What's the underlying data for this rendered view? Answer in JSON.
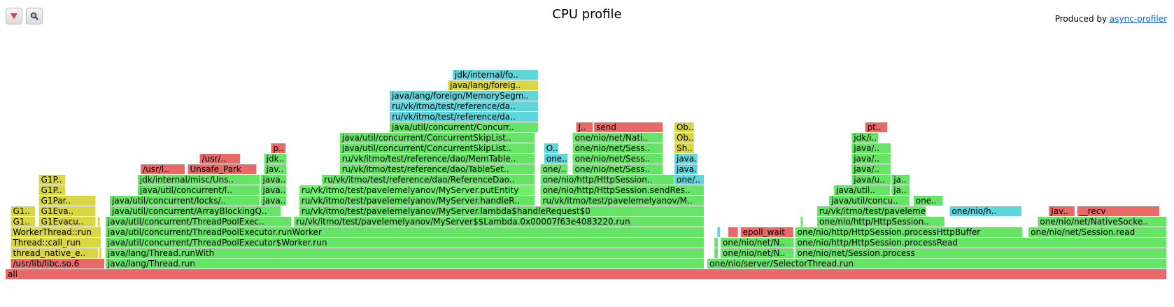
{
  "header": {
    "title": "CPU profile",
    "produced_by": "Produced by ",
    "produced_link": "async-profiler"
  },
  "toolbar": {
    "reverse_icon": "triangle-down-icon",
    "search_icon": "magnifier-icon"
  },
  "palette": {
    "red": "#e96868",
    "green": "#66e466",
    "cyan": "#5fd6dc",
    "yellow": "#d9d644",
    "bright_green": "#6cf06c"
  },
  "chart_data": {
    "type": "flamegraph",
    "title": "CPU profile",
    "frames": [
      {
        "label": "all",
        "x": 0,
        "w": 1.0,
        "level": 0,
        "color": "red"
      },
      {
        "label": "/usr/lib/libc.so.6",
        "x": 0.0045,
        "w": 0.081,
        "level": 1,
        "color": "red"
      },
      {
        "label": "java/lang/Thread.run",
        "x": 0.0861,
        "w": 0.5157,
        "level": 1,
        "color": "green"
      },
      {
        "label": "one/nio/server/SelectorThread.run",
        "x": 0.6043,
        "w": 0.3957,
        "level": 1,
        "color": "green"
      },
      {
        "label": "thread_native_e..",
        "x": 0.0045,
        "w": 0.0758,
        "level": 2,
        "color": "yellow"
      },
      {
        "label": "",
        "x": 0.0805,
        "w": 0.0025,
        "level": 2,
        "color": "yellow"
      },
      {
        "label": "java/lang/Thread.runWith",
        "x": 0.0861,
        "w": 0.5157,
        "level": 2,
        "color": "green"
      },
      {
        "label": "",
        "x": 0.6103,
        "w": 0.0035,
        "level": 2,
        "color": "green"
      },
      {
        "label": "one/nio/net/N..",
        "x": 0.6157,
        "w": 0.0636,
        "level": 2,
        "color": "green"
      },
      {
        "label": "one/nio/net/Session.process",
        "x": 0.6799,
        "w": 0.3201,
        "level": 2,
        "color": "green"
      },
      {
        "label": "Thread::call_run",
        "x": 0.0045,
        "w": 0.0781,
        "level": 3,
        "color": "yellow"
      },
      {
        "label": "java/util/concurrent/ThreadPoolExecutor$Worker.run",
        "x": 0.0861,
        "w": 0.5157,
        "level": 3,
        "color": "green"
      },
      {
        "label": "",
        "x": 0.6103,
        "w": 0.0035,
        "level": 3,
        "color": "green"
      },
      {
        "label": "one/nio/net/N..",
        "x": 0.6157,
        "w": 0.0636,
        "level": 3,
        "color": "green"
      },
      {
        "label": "one/nio/http/HttpSession.processRead",
        "x": 0.6799,
        "w": 0.3201,
        "level": 3,
        "color": "green"
      },
      {
        "label": "WorkerThread::run",
        "x": 0.0045,
        "w": 0.0781,
        "level": 4,
        "color": "yellow"
      },
      {
        "label": "java/util/concurrent/ThreadPoolExecutor.runWorker",
        "x": 0.0861,
        "w": 0.5157,
        "level": 4,
        "color": "green"
      },
      {
        "label": "",
        "x": 0.6128,
        "w": 0.0029,
        "level": 4,
        "color": "cyan"
      },
      {
        "label": "",
        "x": 0.6222,
        "w": 0.0089,
        "level": 4,
        "color": "red"
      },
      {
        "label": "epoll_wait",
        "x": 0.6329,
        "w": 0.0459,
        "level": 4,
        "color": "red"
      },
      {
        "label": "one/nio/http/HttpSession.processHttpBuffer",
        "x": 0.6799,
        "w": 0.1961,
        "level": 4,
        "color": "green"
      },
      {
        "label": "one/nio/net/Session.read",
        "x": 0.8808,
        "w": 0.1192,
        "level": 4,
        "color": "green"
      },
      {
        "label": "G1..",
        "x": 0.0045,
        "w": 0.0215,
        "level": 5,
        "color": "yellow"
      },
      {
        "label": "G1Evacu..",
        "x": 0.0287,
        "w": 0.0493,
        "level": 5,
        "color": "yellow"
      },
      {
        "label": "",
        "x": 0.0793,
        "w": 0.0024,
        "level": 5,
        "color": "yellow"
      },
      {
        "label": "java/util/concurrent/ThreadPoolExec..",
        "x": 0.0861,
        "w": 0.1606,
        "level": 5,
        "color": "green"
      },
      {
        "label": "ru/vk/itmo/test/pavelemelyanov/MyServer$$Lambda.0x00007f63e4083220.run",
        "x": 0.2483,
        "w": 0.3535,
        "level": 5,
        "color": "green"
      },
      {
        "label": "",
        "x": 0.6846,
        "w": 0.0024,
        "level": 5,
        "color": "green"
      },
      {
        "label": "ru/vk/itmo/test/pavelemelyanov/MyServer.lambda$handleRequest$0",
        "x": 0.2529,
        "w": 0.3489,
        "level": 6,
        "color": "green"
      },
      {
        "label": "ru/vk/itmo/test/pavelemelyanov/MyServer.handleR..",
        "x": 0.2529,
        "w": 0.2033,
        "level": 7,
        "color": "green"
      },
      {
        "label": "ru/vk/itmo/test/pavelemelyanov/MyServer.putEntity",
        "x": 0.2529,
        "w": 0.2033,
        "level": 8,
        "color": "bright_green"
      },
      {
        "label": "ru/vk/itmo/test/reference/dao/ReferenceDao..",
        "x": 0.2724,
        "w": 0.1838,
        "level": 9,
        "color": "green"
      },
      {
        "label": "ru/vk/itmo/test/reference/dao/TableSet..",
        "x": 0.2878,
        "w": 0.1684,
        "level": 10,
        "color": "green"
      },
      {
        "label": "ru/vk/itmo/test/reference/dao/MemTable..",
        "x": 0.2878,
        "w": 0.1684,
        "level": 11,
        "color": "green"
      },
      {
        "label": "java/util/concurrent/ConcurrentSkipList..",
        "x": 0.2878,
        "w": 0.1684,
        "level": 12,
        "color": "green"
      },
      {
        "label": "java/util/concurrent/ConcurrentSkipList..",
        "x": 0.2878,
        "w": 0.1684,
        "level": 13,
        "color": "green"
      },
      {
        "label": "java/util/concurrent/Concurr..",
        "x": 0.3307,
        "w": 0.1283,
        "level": 14,
        "color": "green"
      },
      {
        "label": "ru/vk/itmo/test/reference/da..",
        "x": 0.3307,
        "w": 0.1283,
        "level": 15,
        "color": "cyan"
      },
      {
        "label": "ru/vk/itmo/test/reference/da..",
        "x": 0.3307,
        "w": 0.1283,
        "level": 16,
        "color": "cyan"
      },
      {
        "label": "java/lang/foreign/MemorySegm..",
        "x": 0.3307,
        "w": 0.1283,
        "level": 17,
        "color": "cyan"
      },
      {
        "label": "java/lang/foreig..",
        "x": 0.3808,
        "w": 0.0782,
        "level": 18,
        "color": "yellow"
      },
      {
        "label": "jdk/internal/fo..",
        "x": 0.3849,
        "w": 0.0741,
        "level": 19,
        "color": "cyan"
      },
      {
        "label": "one/nio/http/HttpSession.sendRes..",
        "x": 0.4606,
        "w": 0.1412,
        "level": 8,
        "color": "green"
      },
      {
        "label": "ru/vk/itmo/test/pavelemelyanov/M..",
        "x": 0.4606,
        "w": 0.1412,
        "level": 7,
        "color": "green"
      },
      {
        "label": "one/nio/net/Sess..",
        "x": 0.4883,
        "w": 0.0781,
        "level": 10,
        "color": "green"
      },
      {
        "label": "one/nio/net/Sess..",
        "x": 0.4883,
        "w": 0.0781,
        "level": 11,
        "color": "green"
      },
      {
        "label": "one/nio/net/Sess..",
        "x": 0.4883,
        "w": 0.0781,
        "level": 12,
        "color": "green"
      },
      {
        "label": "one/nio/net/Nati..",
        "x": 0.4883,
        "w": 0.0781,
        "level": 13,
        "color": "green"
      },
      {
        "label": "J..",
        "x": 0.4913,
        "w": 0.0149,
        "level": 14,
        "color": "red"
      },
      {
        "label": "send",
        "x": 0.5067,
        "w": 0.0596,
        "level": 14,
        "color": "red"
      },
      {
        "label": "one/..",
        "x": 0.5759,
        "w": 0.0259,
        "level": 9,
        "color": "cyan"
      },
      {
        "label": "java..",
        "x": 0.5759,
        "w": 0.0203,
        "level": 10,
        "color": "cyan"
      },
      {
        "label": "java..",
        "x": 0.5759,
        "w": 0.0203,
        "level": 11,
        "color": "cyan"
      },
      {
        "label": "Sh..",
        "x": 0.5759,
        "w": 0.0173,
        "level": 12,
        "color": "yellow"
      },
      {
        "label": "Ob..",
        "x": 0.5759,
        "w": 0.0173,
        "level": 13,
        "color": "yellow"
      },
      {
        "label": "Ob..",
        "x": 0.5759,
        "w": 0.0173,
        "level": 14,
        "color": "yellow"
      },
      {
        "label": "one..",
        "x": 0.4637,
        "w": 0.0209,
        "level": 11,
        "color": "cyan"
      },
      {
        "label": "O..",
        "x": 0.4637,
        "w": 0.0129,
        "level": 12,
        "color": "cyan"
      },
      {
        "label": "one/..",
        "x": 0.4606,
        "w": 0.0239,
        "level": 10,
        "color": "green"
      },
      {
        "label": "one/nio/http/HttpSession..",
        "x": 0.4606,
        "w": 0.1153,
        "level": 9,
        "color": "green"
      },
      {
        "label": "java/util/concurrent/ArrayBlockingQ..",
        "x": 0.0898,
        "w": 0.1477,
        "level": 6,
        "color": "green"
      },
      {
        "label": "java/util/concurrent/locks/..",
        "x": 0.0898,
        "w": 0.1294,
        "level": 7,
        "color": "green"
      },
      {
        "label": "java/util/concurrent/l..",
        "x": 0.1138,
        "w": 0.1055,
        "level": 8,
        "color": "green"
      },
      {
        "label": "jdk/internal/misc/Uns..",
        "x": 0.1138,
        "w": 0.1055,
        "level": 9,
        "color": "green"
      },
      {
        "label": "/usr/l..",
        "x": 0.1163,
        "w": 0.0385,
        "level": 10,
        "color": "red"
      },
      {
        "label": "Unsafe_Park",
        "x": 0.1569,
        "w": 0.0596,
        "level": 10,
        "color": "red"
      },
      {
        "label": "/usr/..",
        "x": 0.1672,
        "w": 0.0352,
        "level": 11,
        "color": "red"
      },
      {
        "label": "java..",
        "x": 0.2196,
        "w": 0.0227,
        "level": 7,
        "color": "green"
      },
      {
        "label": "java..",
        "x": 0.2196,
        "w": 0.0227,
        "level": 8,
        "color": "green"
      },
      {
        "label": "java..",
        "x": 0.2196,
        "w": 0.0227,
        "level": 9,
        "color": "green"
      },
      {
        "label": "jav..",
        "x": 0.2227,
        "w": 0.0197,
        "level": 10,
        "color": "green"
      },
      {
        "label": "jdk..",
        "x": 0.2227,
        "w": 0.0197,
        "level": 11,
        "color": "green"
      },
      {
        "label": "p..",
        "x": 0.2286,
        "w": 0.0131,
        "level": 12,
        "color": "red"
      },
      {
        "label": "G1Par..",
        "x": 0.0287,
        "w": 0.0493,
        "level": 7,
        "color": "yellow"
      },
      {
        "label": "G1P..",
        "x": 0.0287,
        "w": 0.0233,
        "level": 8,
        "color": "yellow"
      },
      {
        "label": "G1P..",
        "x": 0.0287,
        "w": 0.0233,
        "level": 9,
        "color": "yellow"
      },
      {
        "label": "G1Eva..",
        "x": 0.0287,
        "w": 0.0493,
        "level": 6,
        "color": "yellow"
      },
      {
        "label": "G1..",
        "x": 0.0045,
        "w": 0.0215,
        "level": 6,
        "color": "yellow"
      },
      {
        "label": "ru/vk/itmo/test/pavelemelyanov/MyServer.lambda$handleRequest$0",
        "x": 0.2529,
        "w": 0.3489,
        "level": 6,
        "color": "green"
      },
      {
        "label": "ru/vk/itmo/test/pavelemelyanov/MyServer.handleR..",
        "x": 0.2529,
        "w": 0.2033,
        "level": 7,
        "color": "green"
      },
      {
        "label": "ru/vk/itmo/test/paveleme..",
        "x": 0.6988,
        "w": 0.0943,
        "level": 6,
        "color": "green"
      },
      {
        "label": "java/util/concu..",
        "x": 0.7091,
        "w": 0.0697,
        "level": 7,
        "color": "green"
      },
      {
        "label": "one..",
        "x": 0.7818,
        "w": 0.0257,
        "level": 7,
        "color": "green"
      },
      {
        "label": "java/util..",
        "x": 0.7133,
        "w": 0.0487,
        "level": 8,
        "color": "green"
      },
      {
        "label": "ja..",
        "x": 0.7628,
        "w": 0.0162,
        "level": 8,
        "color": "green"
      },
      {
        "label": "java/u..",
        "x": 0.7285,
        "w": 0.0341,
        "level": 9,
        "color": "green"
      },
      {
        "label": "ja..",
        "x": 0.7628,
        "w": 0.0162,
        "level": 9,
        "color": "green"
      },
      {
        "label": "java/..",
        "x": 0.7285,
        "w": 0.0341,
        "level": 10,
        "color": "green"
      },
      {
        "label": "java/..",
        "x": 0.7285,
        "w": 0.0341,
        "level": 11,
        "color": "green"
      },
      {
        "label": "java/..",
        "x": 0.7285,
        "w": 0.0341,
        "level": 12,
        "color": "green"
      },
      {
        "label": "jdk/i..",
        "x": 0.7285,
        "w": 0.0233,
        "level": 13,
        "color": "green"
      },
      {
        "label": "pt..",
        "x": 0.7401,
        "w": 0.0197,
        "level": 14,
        "color": "red"
      },
      {
        "label": "one/nio/h..",
        "x": 0.8129,
        "w": 0.0623,
        "level": 6,
        "color": "cyan"
      },
      {
        "label": "one/nio/net/NativeSocke..",
        "x": 0.8888,
        "w": 0.1112,
        "level": 5,
        "color": "green"
      },
      {
        "label": "one/nio/http/HttpSession..",
        "x": 0.6988,
        "w": 0.1101,
        "level": 5,
        "color": "green"
      },
      {
        "label": "Jav..",
        "x": 0.8983,
        "w": 0.0227,
        "level": 6,
        "color": "red"
      },
      {
        "label": "__recv",
        "x": 0.9227,
        "w": 0.0713,
        "level": 6,
        "color": "red"
      }
    ]
  }
}
